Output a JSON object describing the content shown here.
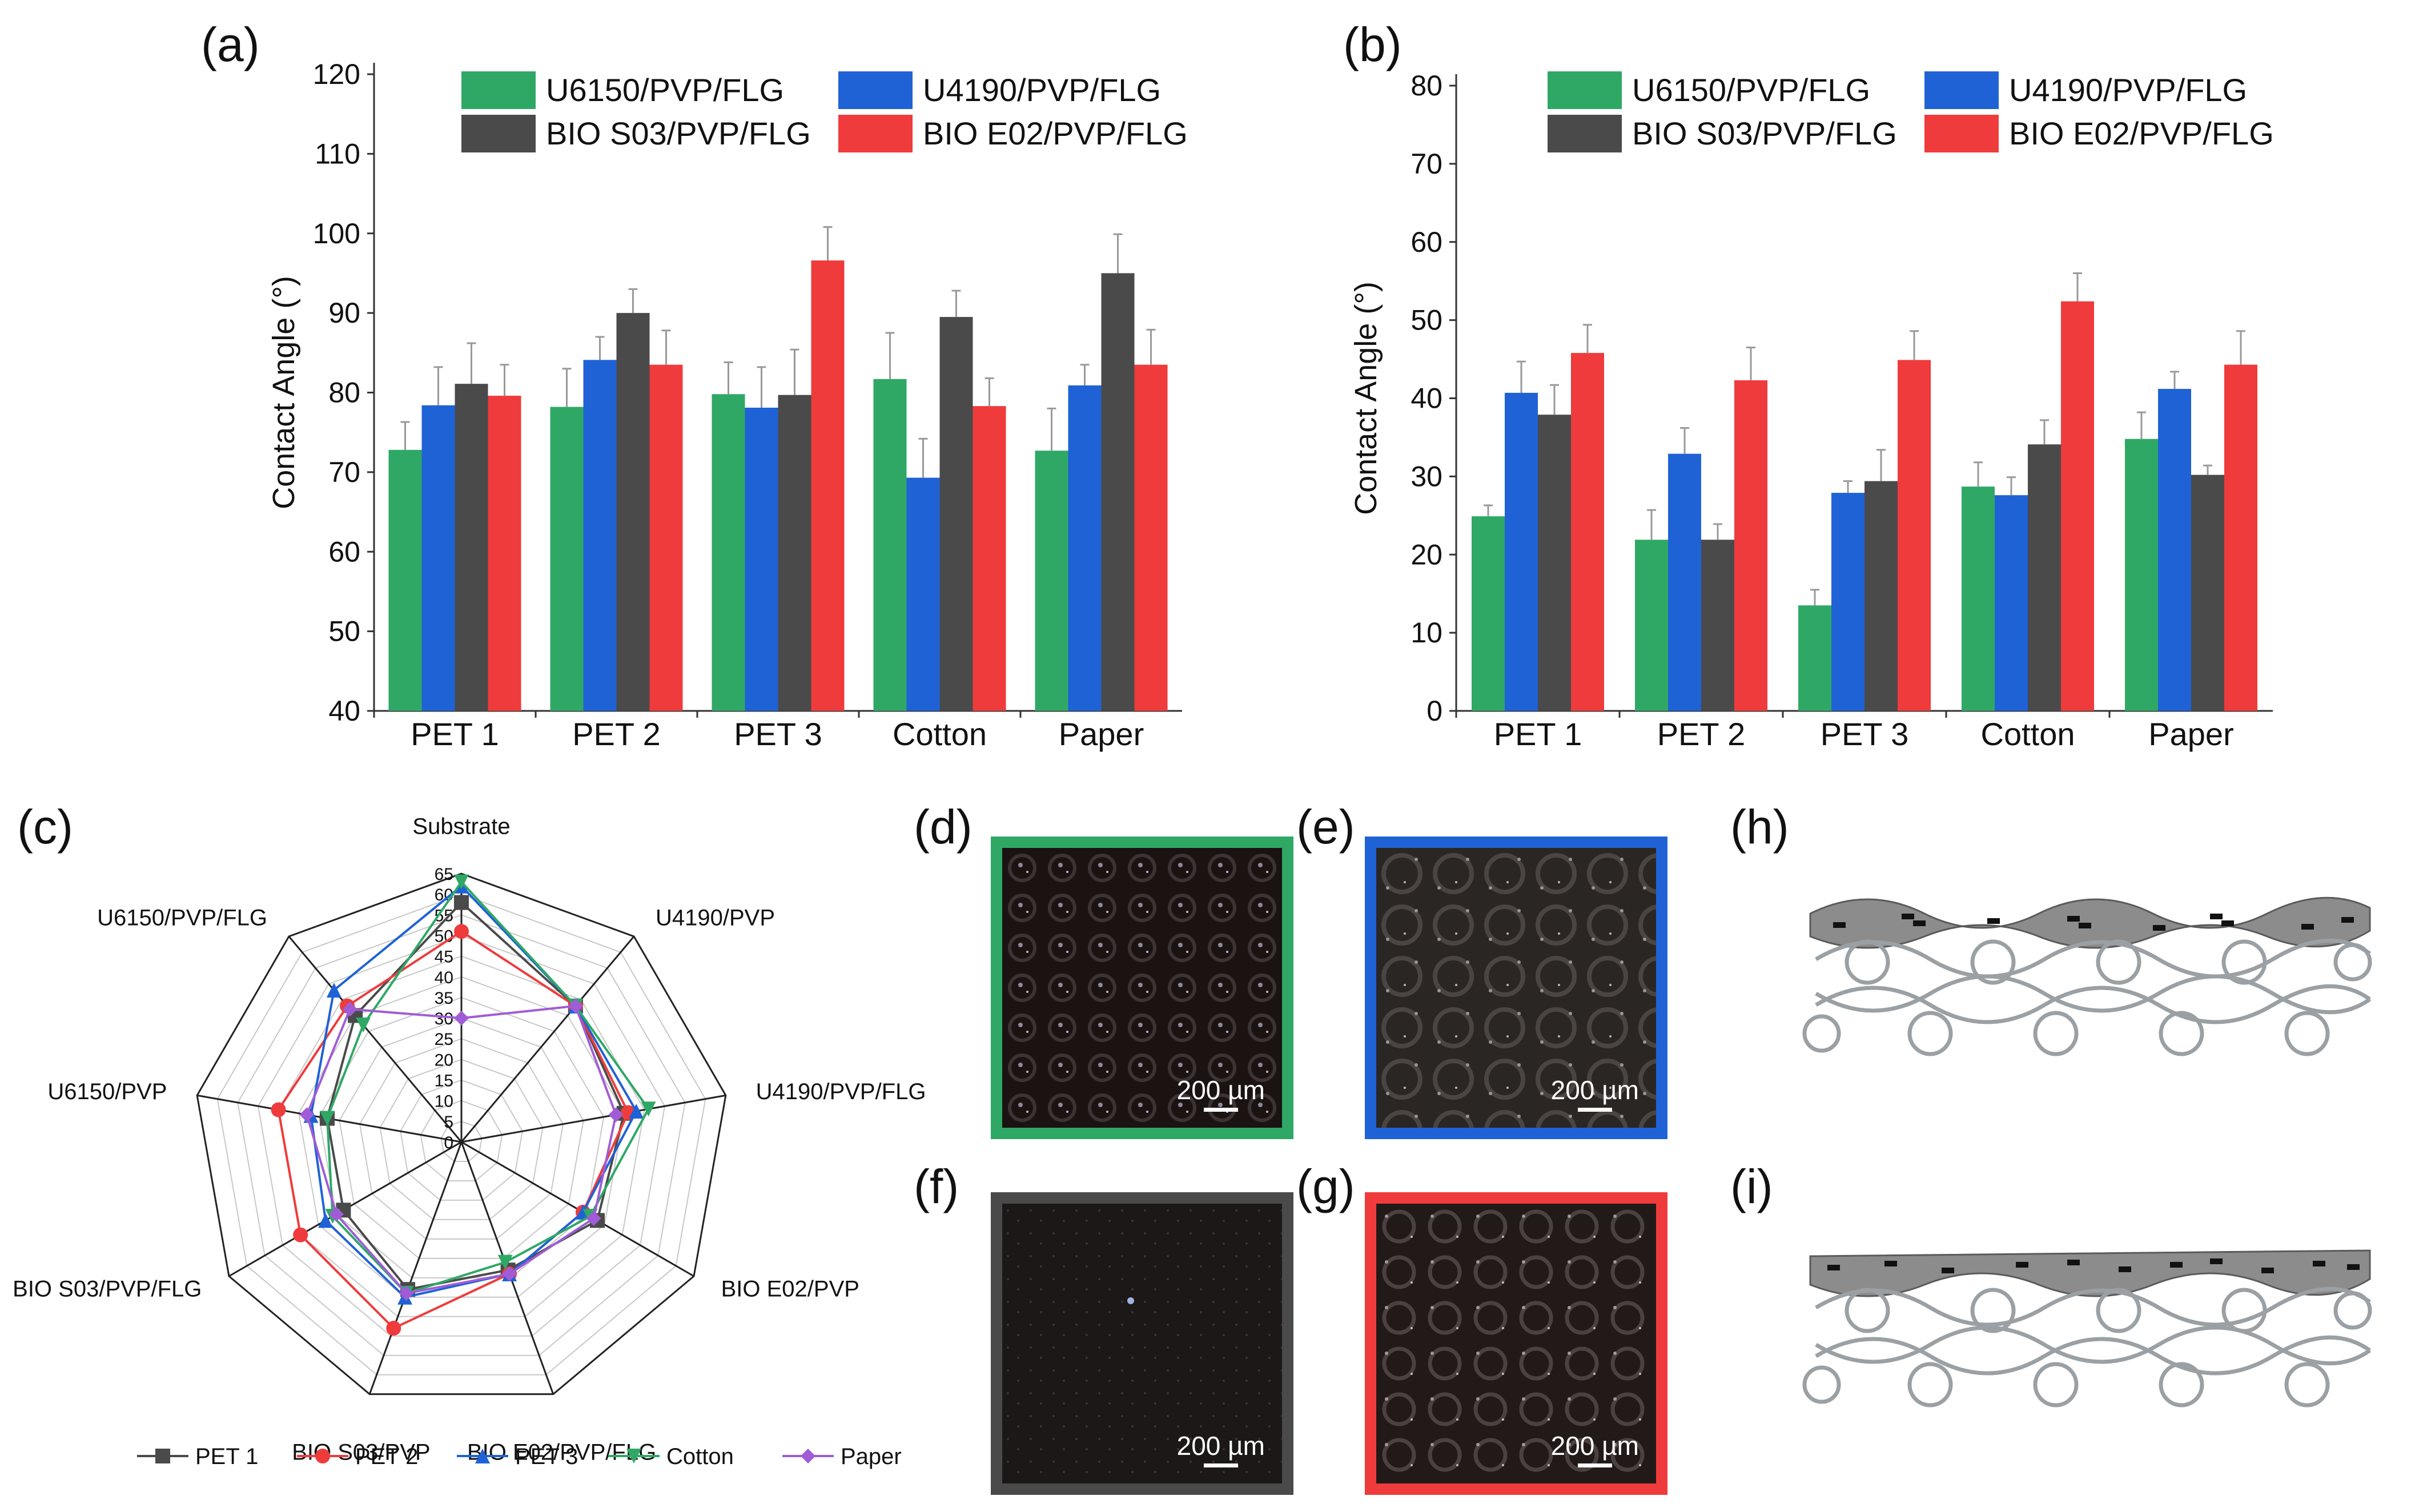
{
  "panels": {
    "a": "(a)",
    "b": "(b)",
    "c": "(c)",
    "d": "(d)",
    "e": "(e)",
    "f": "(f)",
    "g": "(g)",
    "h": "(h)",
    "i": "(i)"
  },
  "colors": {
    "green": "#2fa866",
    "blue": "#1f62d6",
    "dark": "#4a4a4a",
    "red": "#ef3b3b"
  },
  "chart_data": [
    {
      "id": "a",
      "type": "bar",
      "categories": [
        "PET 1",
        "PET 2",
        "PET 3",
        "Cotton",
        "Paper"
      ],
      "ylabel": "Contact Angle (°)",
      "ylim": [
        40,
        120
      ],
      "yticks": [
        40,
        50,
        60,
        70,
        80,
        90,
        100,
        110,
        120
      ],
      "legend_position": "top",
      "series": [
        {
          "name": "U6150/PVP/FLG",
          "color": "#2fa866",
          "values": [
            72.8,
            78.2,
            79.8,
            81.7,
            72.7
          ],
          "errors": [
            3.5,
            4.8,
            4.0,
            5.8,
            5.3
          ]
        },
        {
          "name": "U4190/PVP/FLG",
          "color": "#1f62d6",
          "values": [
            78.4,
            84.1,
            78.1,
            69.3,
            80.9
          ],
          "errors": [
            4.8,
            2.9,
            5.1,
            4.9,
            2.6
          ]
        },
        {
          "name": "BIO S03/PVP/FLG",
          "color": "#4a4a4a",
          "values": [
            81.1,
            90.0,
            79.7,
            89.5,
            95.0
          ],
          "errors": [
            5.1,
            3.0,
            5.7,
            3.3,
            4.9
          ]
        },
        {
          "name": "BIO E02/PVP/FLG",
          "color": "#ef3b3b",
          "values": [
            79.6,
            83.5,
            96.6,
            78.3,
            83.5
          ],
          "errors": [
            3.9,
            4.3,
            4.2,
            3.5,
            4.4
          ]
        }
      ]
    },
    {
      "id": "b",
      "type": "bar",
      "categories": [
        "PET 1",
        "PET 2",
        "PET 3",
        "Cotton",
        "Paper"
      ],
      "ylabel": "Contact Angle (°)",
      "ylim": [
        0,
        80
      ],
      "yticks": [
        0,
        10,
        20,
        30,
        40,
        50,
        60,
        70,
        80
      ],
      "legend_position": "top",
      "series": [
        {
          "name": "U6150/PVP/FLG",
          "color": "#2fa866",
          "values": [
            24.9,
            21.9,
            13.5,
            28.7,
            34.8
          ],
          "errors": [
            1.4,
            3.8,
            2.0,
            3.1,
            3.4
          ]
        },
        {
          "name": "U4190/PVP/FLG",
          "color": "#1f62d6",
          "values": [
            40.7,
            32.9,
            27.9,
            27.6,
            41.2
          ],
          "errors": [
            4.0,
            3.3,
            1.5,
            2.3,
            2.2
          ]
        },
        {
          "name": "BIO S03/PVP/FLG",
          "color": "#4a4a4a",
          "values": [
            37.9,
            21.9,
            29.4,
            34.1,
            30.2
          ],
          "errors": [
            3.8,
            2.0,
            4.0,
            3.1,
            1.2
          ]
        },
        {
          "name": "BIO E02/PVP/FLG",
          "color": "#ef3b3b",
          "values": [
            45.8,
            42.3,
            44.9,
            52.4,
            44.3
          ],
          "errors": [
            3.6,
            4.2,
            3.7,
            3.6,
            4.3
          ]
        }
      ]
    },
    {
      "id": "c",
      "type": "radar",
      "axes": [
        "Substrate",
        "U4190/PVP",
        "U4190/PVP/FLG",
        "BIO E02/PVP",
        "BIO E02/PVP/FLG",
        "BIO S03/PVP",
        "BIO S03/PVP/FLG",
        "U6150/PVP",
        "U6150/PVP/FLG"
      ],
      "rlim": [
        0,
        65
      ],
      "rticks": [
        0,
        5,
        10,
        15,
        20,
        25,
        30,
        35,
        40,
        45,
        50,
        55,
        60,
        65
      ],
      "legend_position": "bottom",
      "series": [
        {
          "name": "PET 1",
          "color": "#4a4a4a",
          "marker": "square",
          "values": [
            58,
            43,
            40,
            38,
            33,
            38,
            33,
            33,
            40
          ]
        },
        {
          "name": "PET 2",
          "color": "#ef3b3b",
          "marker": "circle",
          "values": [
            51,
            43,
            41,
            34,
            34,
            48,
            45,
            45,
            43
          ]
        },
        {
          "name": "PET 3",
          "color": "#1f62d6",
          "marker": "triangle-up",
          "values": [
            62,
            43,
            43,
            34,
            34,
            40,
            38,
            37,
            48
          ]
        },
        {
          "name": "Cotton",
          "color": "#2fa866",
          "marker": "triangle-down",
          "values": [
            63,
            43,
            46,
            36,
            31,
            39,
            36,
            33,
            37
          ]
        },
        {
          "name": "Paper",
          "color": "#a05cd6",
          "marker": "diamond",
          "values": [
            30,
            43,
            38,
            37,
            34,
            39,
            35,
            38,
            42
          ]
        }
      ]
    }
  ],
  "micrographs": [
    {
      "id": "d",
      "label": "(d)",
      "scale": "200 µm",
      "frame": "#2fa866"
    },
    {
      "id": "e",
      "label": "(e)",
      "scale": "200 µm",
      "frame": "#1f62d6"
    },
    {
      "id": "f",
      "label": "(f)",
      "scale": "200 µm",
      "frame": "#4a4a4a"
    },
    {
      "id": "g",
      "label": "(g)",
      "scale": "200 µm",
      "frame": "#ef3b3b"
    }
  ]
}
